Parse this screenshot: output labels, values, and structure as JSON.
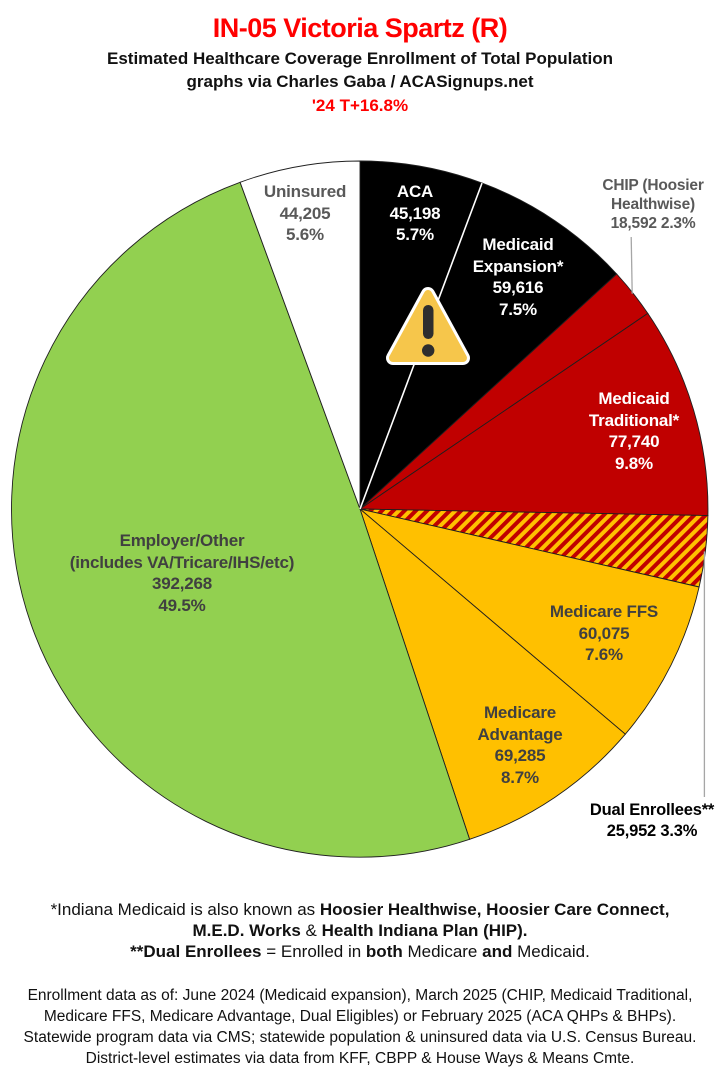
{
  "header": {
    "title": "IN-05 Victoria Spartz (R)",
    "subtitle1": "Estimated Healthcare Coverage Enrollment of Total Population",
    "subtitle2": "graphs via Charles Gaba / ACASignups.net",
    "change_label": "'24 T+16.8%",
    "title_color": "#FF0000"
  },
  "chart_data": {
    "type": "pie",
    "title": "Estimated Healthcare Coverage Enrollment of Total Population",
    "start_angle_deg": 0,
    "direction": "clockwise",
    "legend_position": "none",
    "annotations": [
      {
        "type": "warning-icon",
        "glyph": "⚠"
      }
    ],
    "hatch_colors": {
      "base": "#C00000",
      "stripe": "#FFC000"
    },
    "slices": [
      {
        "id": "aca",
        "name": "ACA",
        "value": 45198,
        "value_label": "45,198",
        "pct": 5.7,
        "pct_label": "5.7%",
        "color": "#000000",
        "label_lines": [
          "ACA",
          "45,198",
          "5.7%"
        ]
      },
      {
        "id": "medicaid-expansion",
        "name": "Medicaid Expansion*",
        "value": 59616,
        "value_label": "59,616",
        "pct": 7.5,
        "pct_label": "7.5%",
        "color": "#000000",
        "label_lines": [
          "Medicaid",
          "Expansion*",
          "59,616",
          "7.5%"
        ]
      },
      {
        "id": "chip",
        "name": "CHIP (Hoosier Healthwise)",
        "value": 18592,
        "value_label": "18,592",
        "pct": 2.3,
        "pct_label": "2.3%",
        "color": "#C00000",
        "outside_label": true,
        "leader": "up",
        "label_lines": [
          "CHIP (Hoosier",
          "Healthwise)",
          "18,592 2.3%"
        ]
      },
      {
        "id": "medicaid-traditional",
        "name": "Medicaid Traditional*",
        "value": 77740,
        "value_label": "77,740",
        "pct": 9.8,
        "pct_label": "9.8%",
        "color": "#C00000",
        "label_lines": [
          "Medicaid",
          "Traditional*",
          "77,740",
          "9.8%"
        ]
      },
      {
        "id": "dual-enrollees",
        "name": "Dual Enrollees**",
        "value": 25952,
        "value_label": "25,952",
        "pct": 3.3,
        "pct_label": "3.3%",
        "color": "hatch",
        "outside_label": true,
        "leader": "down",
        "label_lines": [
          "Dual Enrollees**",
          "25,952 3.3%"
        ]
      },
      {
        "id": "medicare-ffs",
        "name": "Medicare FFS",
        "value": 60075,
        "value_label": "60,075",
        "pct": 7.6,
        "pct_label": "7.6%",
        "color": "#FFC000",
        "label_lines": [
          "Medicare FFS",
          "60,075",
          "7.6%"
        ]
      },
      {
        "id": "medicare-advantage",
        "name": "Medicare Advantage",
        "value": 69285,
        "value_label": "69,285",
        "pct": 8.7,
        "pct_label": "8.7%",
        "color": "#FFC000",
        "label_lines": [
          "Medicare",
          "Advantage",
          "69,285",
          "8.7%"
        ]
      },
      {
        "id": "employer-other",
        "name": "Employer/Other (includes VA/Tricare/IHS/etc)",
        "value": 392268,
        "value_label": "392,268",
        "pct": 49.5,
        "pct_label": "49.5%",
        "color": "#92D050",
        "label_lines": [
          "Employer/Other",
          "(includes VA/Tricare/IHS/etc)",
          "392,268",
          "49.5%"
        ]
      },
      {
        "id": "uninsured",
        "name": "Uninsured",
        "value": 44205,
        "value_label": "44,205",
        "pct": 5.6,
        "pct_label": "5.6%",
        "color": "#FFFFFF",
        "label_lines": [
          "Uninsured",
          "44,205",
          "5.6%"
        ]
      }
    ]
  },
  "footnotes": {
    "lines": [
      [
        {
          "t": "*Indiana Medicaid is also known as "
        },
        {
          "t": "Hoosier Healthwise, Hoosier Care Connect,",
          "b": 1
        }
      ],
      [
        {
          "t": "M.E.D. Works",
          "b": 1
        },
        {
          "t": " & "
        },
        {
          "t": "Health Indiana Plan (HIP).",
          "b": 1
        }
      ],
      [
        {
          "t": "**Dual Enrollees",
          "b": 1
        },
        {
          "t": " = Enrolled in "
        },
        {
          "t": "both",
          "b": 1
        },
        {
          "t": " Medicare "
        },
        {
          "t": "and",
          "b": 1
        },
        {
          "t": " Medicaid."
        }
      ]
    ]
  },
  "source": {
    "lines": [
      "Enrollment data as of: June 2024 (Medicaid expansion), March 2025 (CHIP, Medicaid Traditional,",
      "Medicare FFS, Medicare Advantage, Dual Eligibles) or February 2025 (ACA QHPs & BHPs).",
      "Statewide program data via CMS; statewide population & uninsured data via U.S. Census Bureau.",
      "District-level estimates via data from KFF, CBPP & House Ways & Means Cmte."
    ]
  }
}
